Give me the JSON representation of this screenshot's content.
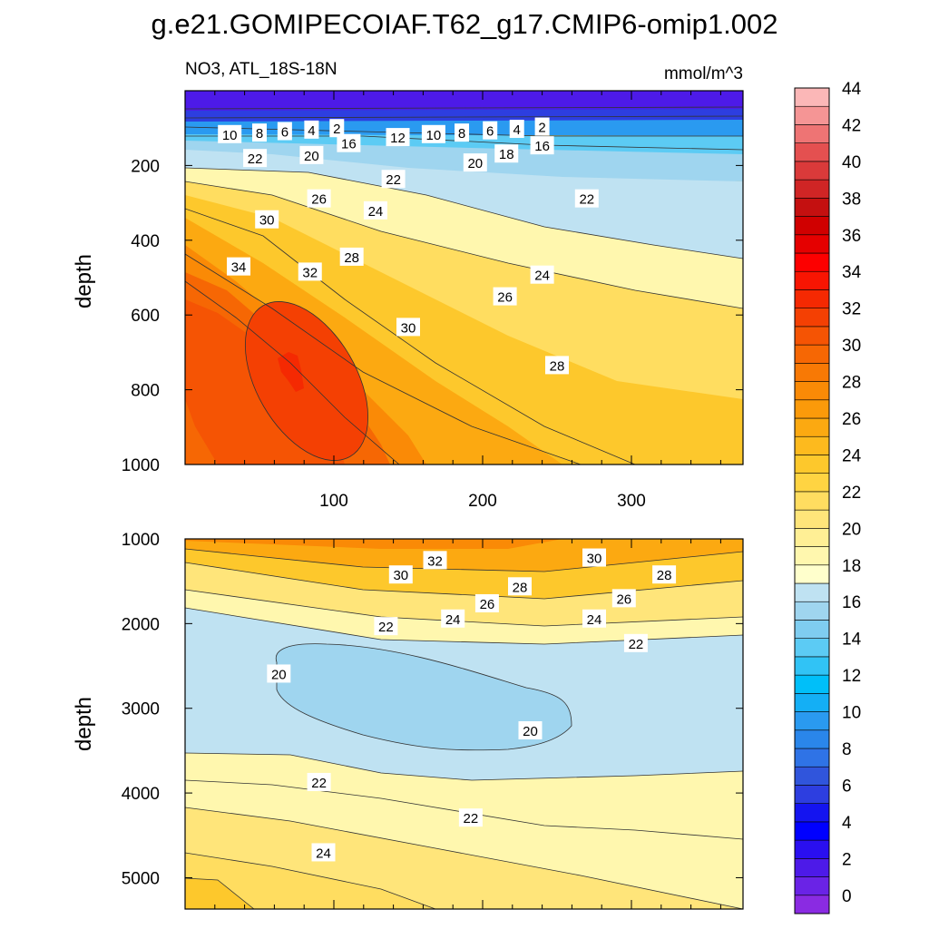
{
  "figure": {
    "title": "g.e21.GOMIPECOIAF.T62_g17.CMIP6-omip1.002",
    "left_subtitle": "NO3, ATL_18S-18N",
    "right_subtitle": "mmol/m^3"
  },
  "chart_data": [
    {
      "type": "heatmap",
      "panel": "upper",
      "ylabel": "depth",
      "xlabel": "",
      "xlim": [
        0,
        375
      ],
      "ylim": [
        1000,
        0
      ],
      "x_ticks": [
        100,
        200,
        300
      ],
      "y_ticks": [
        200,
        400,
        600,
        800,
        1000
      ],
      "contour_interval": 2,
      "contour_labels": [
        {
          "text": "2",
          "x": 102,
          "y": 100
        },
        {
          "text": "4",
          "x": 85,
          "y": 104
        },
        {
          "text": "6",
          "x": 67,
          "y": 108
        },
        {
          "text": "8",
          "x": 50,
          "y": 112
        },
        {
          "text": "10",
          "x": 30,
          "y": 116
        },
        {
          "text": "2",
          "x": 240,
          "y": 96
        },
        {
          "text": "4",
          "x": 223,
          "y": 102
        },
        {
          "text": "6",
          "x": 205,
          "y": 106
        },
        {
          "text": "8",
          "x": 186,
          "y": 112
        },
        {
          "text": "10",
          "x": 167,
          "y": 116
        },
        {
          "text": "12",
          "x": 143,
          "y": 124
        },
        {
          "text": "16",
          "x": 110,
          "y": 140
        },
        {
          "text": "16",
          "x": 240,
          "y": 146
        },
        {
          "text": "18",
          "x": 216,
          "y": 168
        },
        {
          "text": "20",
          "x": 85,
          "y": 172
        },
        {
          "text": "20",
          "x": 195,
          "y": 192
        },
        {
          "text": "22",
          "x": 47,
          "y": 180
        },
        {
          "text": "22",
          "x": 140,
          "y": 236
        },
        {
          "text": "22",
          "x": 270,
          "y": 288
        },
        {
          "text": "26",
          "x": 90,
          "y": 288
        },
        {
          "text": "24",
          "x": 128,
          "y": 320
        },
        {
          "text": "30",
          "x": 55,
          "y": 344
        },
        {
          "text": "28",
          "x": 112,
          "y": 444
        },
        {
          "text": "34",
          "x": 36,
          "y": 470
        },
        {
          "text": "32",
          "x": 84,
          "y": 484
        },
        {
          "text": "24",
          "x": 240,
          "y": 492
        },
        {
          "text": "26",
          "x": 215,
          "y": 550
        },
        {
          "text": "30",
          "x": 150,
          "y": 632
        },
        {
          "text": "28",
          "x": 250,
          "y": 734
        }
      ]
    },
    {
      "type": "heatmap",
      "panel": "lower",
      "ylabel": "depth",
      "xlabel": "",
      "xlim": [
        0,
        375
      ],
      "ylim": [
        5370,
        1000
      ],
      "y_ticks": [
        1000,
        2000,
        3000,
        4000,
        5000
      ],
      "contour_interval": 2,
      "contour_labels": [
        {
          "text": "32",
          "x": 168,
          "y": 1250
        },
        {
          "text": "30",
          "x": 145,
          "y": 1420
        },
        {
          "text": "30",
          "x": 275,
          "y": 1220
        },
        {
          "text": "28",
          "x": 225,
          "y": 1560
        },
        {
          "text": "28",
          "x": 322,
          "y": 1420
        },
        {
          "text": "26",
          "x": 203,
          "y": 1760
        },
        {
          "text": "26",
          "x": 295,
          "y": 1700
        },
        {
          "text": "24",
          "x": 180,
          "y": 1940
        },
        {
          "text": "24",
          "x": 275,
          "y": 1940
        },
        {
          "text": "22",
          "x": 135,
          "y": 2030
        },
        {
          "text": "22",
          "x": 303,
          "y": 2230
        },
        {
          "text": "20",
          "x": 63,
          "y": 2590
        },
        {
          "text": "20",
          "x": 232,
          "y": 3260
        },
        {
          "text": "22",
          "x": 90,
          "y": 3870
        },
        {
          "text": "22",
          "x": 192,
          "y": 4290
        },
        {
          "text": "24",
          "x": 93,
          "y": 4700
        }
      ]
    }
  ],
  "colorbar": {
    "labels": [
      "0",
      "2",
      "4",
      "6",
      "8",
      "10",
      "12",
      "14",
      "16",
      "18",
      "20",
      "22",
      "24",
      "26",
      "28",
      "30",
      "32",
      "34",
      "36",
      "38",
      "40",
      "42",
      "44"
    ],
    "colors": [
      "#8a2be2",
      "#6a23e6",
      "#4d1ae8",
      "#2a0ff0",
      "#0000ff",
      "#1414f0",
      "#2d3ee0",
      "#3055dc",
      "#2f73e6",
      "#2a86ea",
      "#2a9af0",
      "#14aff5",
      "#00bff9",
      "#31c3f5",
      "#5ccbf4",
      "#7fcdf0",
      "#9fd5ef",
      "#bfe2f2",
      "#ffffcc",
      "#fff7ae",
      "#ffef95",
      "#ffe57a",
      "#ffdd60",
      "#ffd442",
      "#fdc82c",
      "#fdba1e",
      "#fca911",
      "#fb9a0a",
      "#fa8a06",
      "#f87905",
      "#f66704",
      "#f55404",
      "#f44003",
      "#f52902",
      "#f81502",
      "#fd0000",
      "#e50000",
      "#d00000",
      "#c41010",
      "#d02525",
      "#da3a3a",
      "#e45050",
      "#ee7474",
      "#f59595",
      "#fbb7b7"
    ]
  }
}
